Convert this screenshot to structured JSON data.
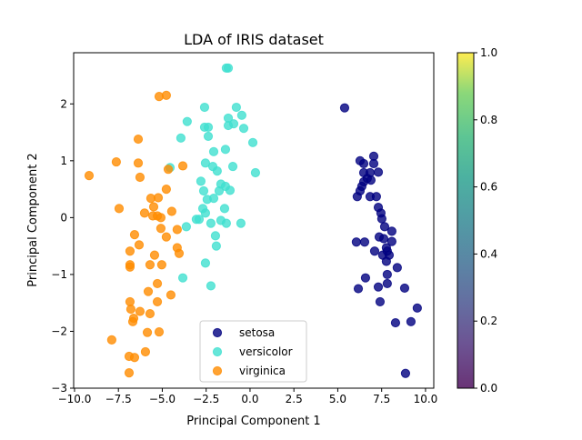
{
  "chart_data": {
    "type": "scatter",
    "title": "LDA of IRIS dataset",
    "xlabel": "Principal Component 1",
    "ylabel": "Principal Component 2",
    "xlim": [
      -10.05,
      10.47
    ],
    "ylim": [
      -3.0,
      2.9
    ],
    "xticks": [
      -10.0,
      -7.5,
      -5.0,
      -2.5,
      0.0,
      2.5,
      5.0,
      7.5,
      10.0
    ],
    "xtick_labels": [
      "−10.0",
      "−7.5",
      "−5.0",
      "−2.5",
      "0.0",
      "2.5",
      "5.0",
      "7.5",
      "10.0"
    ],
    "yticks": [
      -3,
      -2,
      -1,
      0,
      1,
      2
    ],
    "ytick_labels": [
      "−3",
      "−2",
      "−1",
      "0",
      "1",
      "2"
    ],
    "grid": false,
    "legend_placement": "lower-center",
    "marker_alpha": 0.8,
    "series": [
      {
        "name": "setosa",
        "color": "#000080",
        "points": [
          [
            5.39,
            1.93
          ],
          [
            6.27,
            1.0
          ],
          [
            6.48,
            0.95
          ],
          [
            7.05,
            1.08
          ],
          [
            7.05,
            0.95
          ],
          [
            6.48,
            0.79
          ],
          [
            6.84,
            0.79
          ],
          [
            7.31,
            0.8
          ],
          [
            6.68,
            0.69
          ],
          [
            6.48,
            0.63
          ],
          [
            6.89,
            0.66
          ],
          [
            6.37,
            0.55
          ],
          [
            6.27,
            0.47
          ],
          [
            6.11,
            0.37
          ],
          [
            6.84,
            0.37
          ],
          [
            7.31,
            0.18
          ],
          [
            7.2,
            0.37
          ],
          [
            7.46,
            0.08
          ],
          [
            7.51,
            -0.02
          ],
          [
            7.67,
            -0.16
          ],
          [
            7.36,
            -0.34
          ],
          [
            8.08,
            -0.24
          ],
          [
            7.62,
            -0.37
          ],
          [
            7.77,
            -0.53
          ],
          [
            6.53,
            -0.43
          ],
          [
            6.06,
            -0.43
          ],
          [
            8.08,
            -0.42
          ],
          [
            7.1,
            -0.59
          ],
          [
            7.82,
            -0.59
          ],
          [
            7.56,
            -0.66
          ],
          [
            7.93,
            -0.66
          ],
          [
            7.77,
            -0.77
          ],
          [
            8.39,
            -0.88
          ],
          [
            7.82,
            -1.0
          ],
          [
            6.58,
            -1.06
          ],
          [
            6.17,
            -1.25
          ],
          [
            7.31,
            -1.22
          ],
          [
            7.82,
            -1.16
          ],
          [
            8.81,
            -1.24
          ],
          [
            7.41,
            -1.48
          ],
          [
            9.53,
            -1.59
          ],
          [
            8.29,
            -1.85
          ],
          [
            9.17,
            -1.83
          ],
          [
            8.86,
            -2.74
          ]
        ]
      },
      {
        "name": "versicolor",
        "color": "#40E0D0",
        "points": [
          [
            -2.59,
            1.94
          ],
          [
            -0.78,
            1.94
          ],
          [
            -0.47,
            1.8
          ],
          [
            -1.24,
            1.75
          ],
          [
            -3.58,
            1.69
          ],
          [
            -0.93,
            1.65
          ],
          [
            -1.24,
            1.62
          ],
          [
            -0.36,
            1.57
          ],
          [
            -2.59,
            1.59
          ],
          [
            -2.38,
            1.59
          ],
          [
            -2.38,
            1.43
          ],
          [
            -3.94,
            1.4
          ],
          [
            0.16,
            1.32
          ],
          [
            -1.4,
            1.2
          ],
          [
            -2.07,
            1.16
          ],
          [
            -2.54,
            0.96
          ],
          [
            -2.12,
            0.9
          ],
          [
            -0.98,
            0.9
          ],
          [
            -1.87,
            0.82
          ],
          [
            -4.56,
            0.88
          ],
          [
            0.31,
            0.79
          ],
          [
            -2.8,
            0.64
          ],
          [
            -1.66,
            0.59
          ],
          [
            -1.4,
            0.55
          ],
          [
            -1.14,
            0.48
          ],
          [
            -2.64,
            0.47
          ],
          [
            -1.76,
            0.47
          ],
          [
            -2.44,
            0.32
          ],
          [
            -2.07,
            0.34
          ],
          [
            -2.69,
            0.16
          ],
          [
            -1.45,
            0.16
          ],
          [
            -2.54,
            0.08
          ],
          [
            -3.06,
            -0.03
          ],
          [
            -2.9,
            -0.03
          ],
          [
            -1.66,
            -0.05
          ],
          [
            -2.23,
            -0.1
          ],
          [
            -1.35,
            -0.1
          ],
          [
            -0.52,
            -0.1
          ],
          [
            -3.63,
            -0.16
          ],
          [
            -1.97,
            -0.32
          ],
          [
            -1.92,
            -0.5
          ],
          [
            -2.54,
            -0.8
          ],
          [
            -3.83,
            -1.06
          ],
          [
            -2.23,
            -1.2
          ],
          [
            -1.35,
            2.63
          ],
          [
            -1.24,
            2.63
          ]
        ]
      },
      {
        "name": "virginica",
        "color": "#FF8C00",
        "points": [
          [
            -5.18,
            2.13
          ],
          [
            -4.77,
            2.15
          ],
          [
            -6.37,
            1.38
          ],
          [
            -7.62,
            0.98
          ],
          [
            -6.37,
            0.96
          ],
          [
            -3.83,
            0.91
          ],
          [
            -4.66,
            0.85
          ],
          [
            -9.17,
            0.74
          ],
          [
            -6.27,
            0.71
          ],
          [
            -4.77,
            0.5
          ],
          [
            -5.65,
            0.34
          ],
          [
            -5.23,
            0.35
          ],
          [
            -5.49,
            0.19
          ],
          [
            -7.46,
            0.16
          ],
          [
            -6.01,
            0.08
          ],
          [
            -5.54,
            0.03
          ],
          [
            -5.28,
            0.03
          ],
          [
            -5.08,
            0.0
          ],
          [
            -4.46,
            0.11
          ],
          [
            -5.08,
            -0.19
          ],
          [
            -4.15,
            -0.21
          ],
          [
            -4.77,
            -0.34
          ],
          [
            -6.58,
            -0.3
          ],
          [
            -6.32,
            -0.48
          ],
          [
            -6.84,
            -0.59
          ],
          [
            -4.15,
            -0.53
          ],
          [
            -4.04,
            -0.63
          ],
          [
            -5.44,
            -0.66
          ],
          [
            -6.84,
            -0.83
          ],
          [
            -6.84,
            -0.87
          ],
          [
            -5.7,
            -0.83
          ],
          [
            -5.03,
            -0.83
          ],
          [
            -5.28,
            -1.16
          ],
          [
            -5.8,
            -1.3
          ],
          [
            -4.51,
            -1.36
          ],
          [
            -6.84,
            -1.48
          ],
          [
            -5.28,
            -1.48
          ],
          [
            -6.79,
            -1.61
          ],
          [
            -6.27,
            -1.65
          ],
          [
            -5.7,
            -1.69
          ],
          [
            -6.63,
            -1.77
          ],
          [
            -6.68,
            -1.83
          ],
          [
            -7.88,
            -2.15
          ],
          [
            -5.85,
            -2.02
          ],
          [
            -5.18,
            -2.01
          ],
          [
            -6.89,
            -2.44
          ],
          [
            -6.58,
            -2.46
          ],
          [
            -5.96,
            -2.36
          ],
          [
            -6.89,
            -2.73
          ]
        ]
      }
    ],
    "colorbar": {
      "colormap": "viridis",
      "range": [
        0.0,
        1.0
      ],
      "ticks": [
        0.0,
        0.2,
        0.4,
        0.6,
        0.8,
        1.0
      ],
      "tick_labels": [
        "0.0",
        "0.2",
        "0.4",
        "0.6",
        "0.8",
        "1.0"
      ]
    }
  }
}
